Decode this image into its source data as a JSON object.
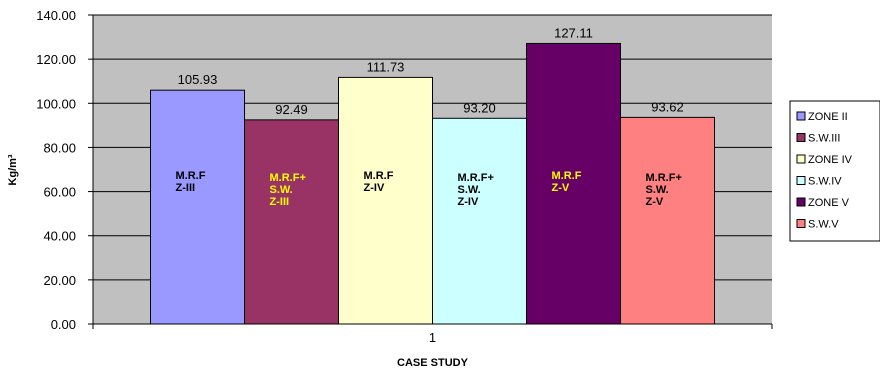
{
  "chart_data": {
    "type": "bar",
    "title": "",
    "xlabel": "CASE STUDY",
    "ylabel": "Kg/m³",
    "categories": [
      "1"
    ],
    "ylim": [
      0,
      140
    ],
    "yticks": [
      "0.00",
      "20.00",
      "40.00",
      "60.00",
      "80.00",
      "100.00",
      "120.00",
      "140.00"
    ],
    "grid": true,
    "legend_position": "right",
    "plot_background": "#c0c0c0",
    "series": [
      {
        "name": "ZONE II",
        "value": 105.93,
        "value_label": "105.93",
        "color": "#9999ff",
        "bar_text": [
          "M.R.F",
          "Z-III"
        ],
        "text_color": "#000000"
      },
      {
        "name": "S.W.III",
        "value": 92.49,
        "value_label": "92.49",
        "color": "#993366",
        "bar_text": [
          "M.R.F+",
          "S.W.",
          "Z-III"
        ],
        "text_color": "#ffff00"
      },
      {
        "name": "ZONE IV",
        "value": 111.73,
        "value_label": "111.73",
        "color": "#ffffcc",
        "bar_text": [
          "M.R.F",
          "Z-IV"
        ],
        "text_color": "#000000"
      },
      {
        "name": "S.W.IV",
        "value": 93.2,
        "value_label": "93.20",
        "color": "#ccffff",
        "bar_text": [
          "M.R.F+",
          "S.W.",
          "Z-IV"
        ],
        "text_color": "#000000"
      },
      {
        "name": "ZONE V",
        "value": 127.11,
        "value_label": "127.11",
        "color": "#660066",
        "bar_text": [
          "M.R.F",
          "Z-V"
        ],
        "text_color": "#ffff00"
      },
      {
        "name": "S.W.V",
        "value": 93.62,
        "value_label": "93.62",
        "color": "#ff8080",
        "bar_text": [
          "M.R.F+",
          "S.W.",
          "Z-V"
        ],
        "text_color": "#000000"
      }
    ]
  }
}
